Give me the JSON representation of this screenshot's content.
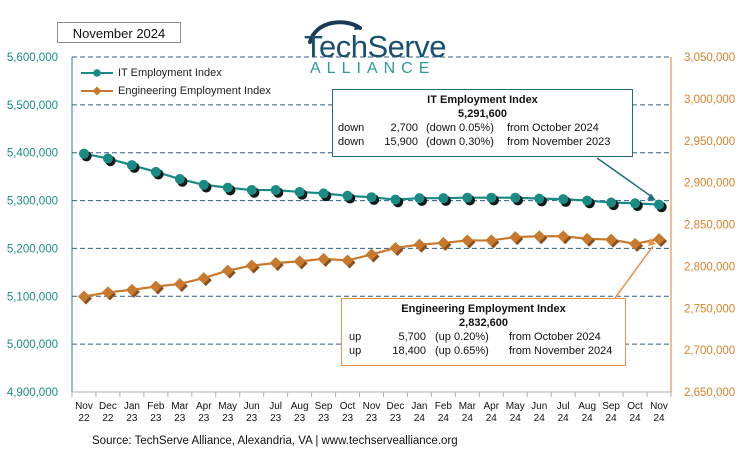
{
  "report_date": "November 2024",
  "logo": {
    "name": "TechServe",
    "subtitle": "ALLIANCE",
    "arc_color": "#1b3a57"
  },
  "source": "Source: TechServe Alliance, Alexandria, VA | www.techservealliance.org",
  "legend": {
    "it_label": "IT Employment Index",
    "eng_label": "Engineering Employment Index"
  },
  "it_callout": {
    "title": "IT Employment Index",
    "value": "5,291,600",
    "rows": [
      {
        "dir": "down",
        "amount": "2,700",
        "pct": "(down 0.05%)",
        "period": "from October 2024"
      },
      {
        "dir": "down",
        "amount": "15,900",
        "pct": "(down 0.30%)",
        "period": "from November 2023"
      }
    ]
  },
  "eng_callout": {
    "title": "Engineering Employment Index",
    "value": "2,832,600",
    "rows": [
      {
        "dir": "up",
        "amount": "5,700",
        "pct": "(up 0.20%)",
        "period": "from  October 2024"
      },
      {
        "dir": "up",
        "amount": "18,400",
        "pct": "(up 0.65%)",
        "period": "from  November 2024"
      }
    ]
  },
  "chart_data": {
    "type": "line",
    "title": "",
    "categories": [
      "Nov 22",
      "Dec 22",
      "Jan 23",
      "Feb 23",
      "Mar 23",
      "Apr 23",
      "May 23",
      "Jun 23",
      "Jul 23",
      "Aug 23",
      "Sep 23",
      "Oct 23",
      "Nov 23",
      "Dec 23",
      "Jan 24",
      "Feb 24",
      "Mar 24",
      "Apr 24",
      "May 24",
      "Jun 24",
      "Jul 24",
      "Aug 24",
      "Sep 24",
      "Oct 24",
      "Nov 24"
    ],
    "x_tick_labels": [
      [
        "Nov",
        "22"
      ],
      [
        "Dec",
        "22"
      ],
      [
        "Jan",
        "23"
      ],
      [
        "Feb",
        "23"
      ],
      [
        "Mar",
        "23"
      ],
      [
        "Apr",
        "23"
      ],
      [
        "May",
        "23"
      ],
      [
        "Jun",
        "23"
      ],
      [
        "Jul",
        "23"
      ],
      [
        "Aug",
        "23"
      ],
      [
        "Sep",
        "23"
      ],
      [
        "Oct",
        "23"
      ],
      [
        "Nov",
        "23"
      ],
      [
        "Dec",
        "23"
      ],
      [
        "Jan",
        "24"
      ],
      [
        "Feb",
        "24"
      ],
      [
        "Mar",
        "24"
      ],
      [
        "Apr",
        "24"
      ],
      [
        "May",
        "24"
      ],
      [
        "Jun",
        "24"
      ],
      [
        "Jul",
        "24"
      ],
      [
        "Aug",
        "24"
      ],
      [
        "Sep",
        "24"
      ],
      [
        "Oct",
        "24"
      ],
      [
        "Nov",
        "24"
      ]
    ],
    "series": [
      {
        "name": "IT Employment Index",
        "axis": "left",
        "color": "#1a8a84",
        "values": [
          5398000,
          5388000,
          5374000,
          5360000,
          5345000,
          5333000,
          5327000,
          5322000,
          5322000,
          5318000,
          5315000,
          5310000,
          5307000,
          5302000,
          5305000,
          5305000,
          5306000,
          5306000,
          5306000,
          5304000,
          5303000,
          5300000,
          5296000,
          5294300,
          5291600
        ]
      },
      {
        "name": "Engineering Employment Index",
        "axis": "right",
        "color": "#c77a2e",
        "values": [
          2764000,
          2769000,
          2772000,
          2776000,
          2779000,
          2786000,
          2795000,
          2801000,
          2804000,
          2806000,
          2809000,
          2807000,
          2814200,
          2822000,
          2826000,
          2828000,
          2831000,
          2831000,
          2835000,
          2836000,
          2836000,
          2833000,
          2832000,
          2826900,
          2832600
        ]
      }
    ],
    "y_left": {
      "min": 4900000,
      "max": 5600000,
      "step": 100000,
      "color": "#1a8a84",
      "tick_labels": [
        "4,900,000",
        "5,000,000",
        "5,100,000",
        "5,200,000",
        "5,300,000",
        "5,400,000",
        "5,500,000",
        "5,600,000"
      ]
    },
    "y_right": {
      "min": 2650000,
      "max": 3050000,
      "step": 50000,
      "color": "#d9822b",
      "tick_labels": [
        "2,650,000",
        "2,700,000",
        "2,750,000",
        "2,800,000",
        "2,850,000",
        "2,900,000",
        "2,950,000",
        "3,000,000",
        "3,050,000"
      ]
    },
    "grid": "horizontal-dashed",
    "legend_position": "top-left"
  }
}
